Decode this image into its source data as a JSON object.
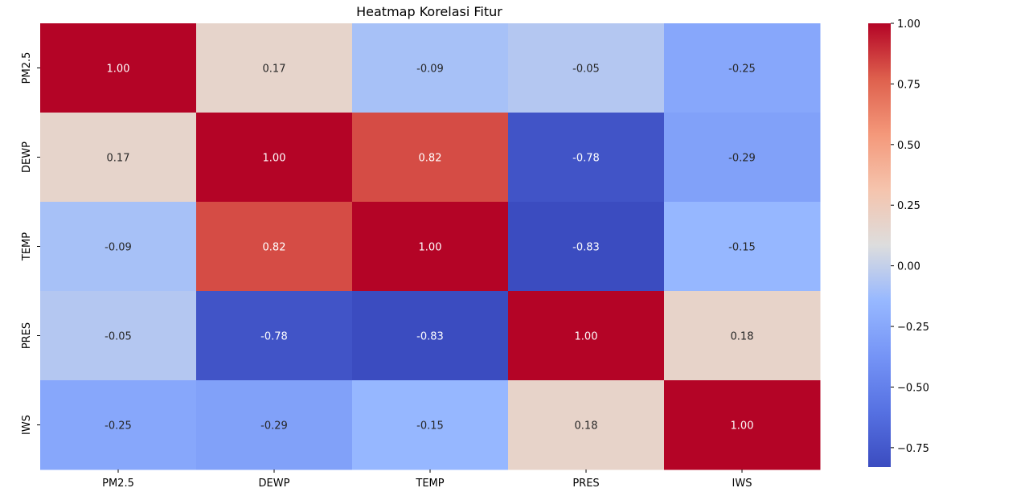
{
  "chart_data": {
    "type": "heatmap",
    "title": "Heatmap Korelasi Fitur",
    "x_categories": [
      "PM2.5",
      "DEWP",
      "TEMP",
      "PRES",
      "IWS"
    ],
    "y_categories": [
      "PM2.5",
      "DEWP",
      "TEMP",
      "PRES",
      "IWS"
    ],
    "values": [
      [
        1.0,
        0.17,
        -0.09,
        -0.05,
        -0.25
      ],
      [
        0.17,
        1.0,
        0.82,
        -0.78,
        -0.29
      ],
      [
        -0.09,
        0.82,
        1.0,
        -0.83,
        -0.15
      ],
      [
        -0.05,
        -0.78,
        -0.83,
        1.0,
        0.18
      ],
      [
        -0.25,
        -0.29,
        -0.15,
        0.18,
        1.0
      ]
    ],
    "value_labels": [
      [
        "1.00",
        "0.17",
        "-0.09",
        "-0.05",
        "-0.25"
      ],
      [
        "0.17",
        "1.00",
        "0.82",
        "-0.78",
        "-0.29"
      ],
      [
        "-0.09",
        "0.82",
        "1.00",
        "-0.83",
        "-0.15"
      ],
      [
        "-0.05",
        "-0.78",
        "-0.83",
        "1.00",
        "0.18"
      ],
      [
        "-0.25",
        "-0.29",
        "-0.15",
        "0.18",
        "1.00"
      ]
    ],
    "colormap": "coolwarm",
    "colorbar": {
      "vmin": -0.83,
      "vmax": 1.0,
      "ticks": [
        1.0,
        0.75,
        0.5,
        0.25,
        0.0,
        -0.25,
        -0.5,
        -0.75
      ],
      "tick_labels": [
        "1.00",
        "0.75",
        "0.50",
        "0.25",
        "0.00",
        "−0.25",
        "−0.50",
        "−0.75"
      ]
    },
    "legend": "right"
  }
}
